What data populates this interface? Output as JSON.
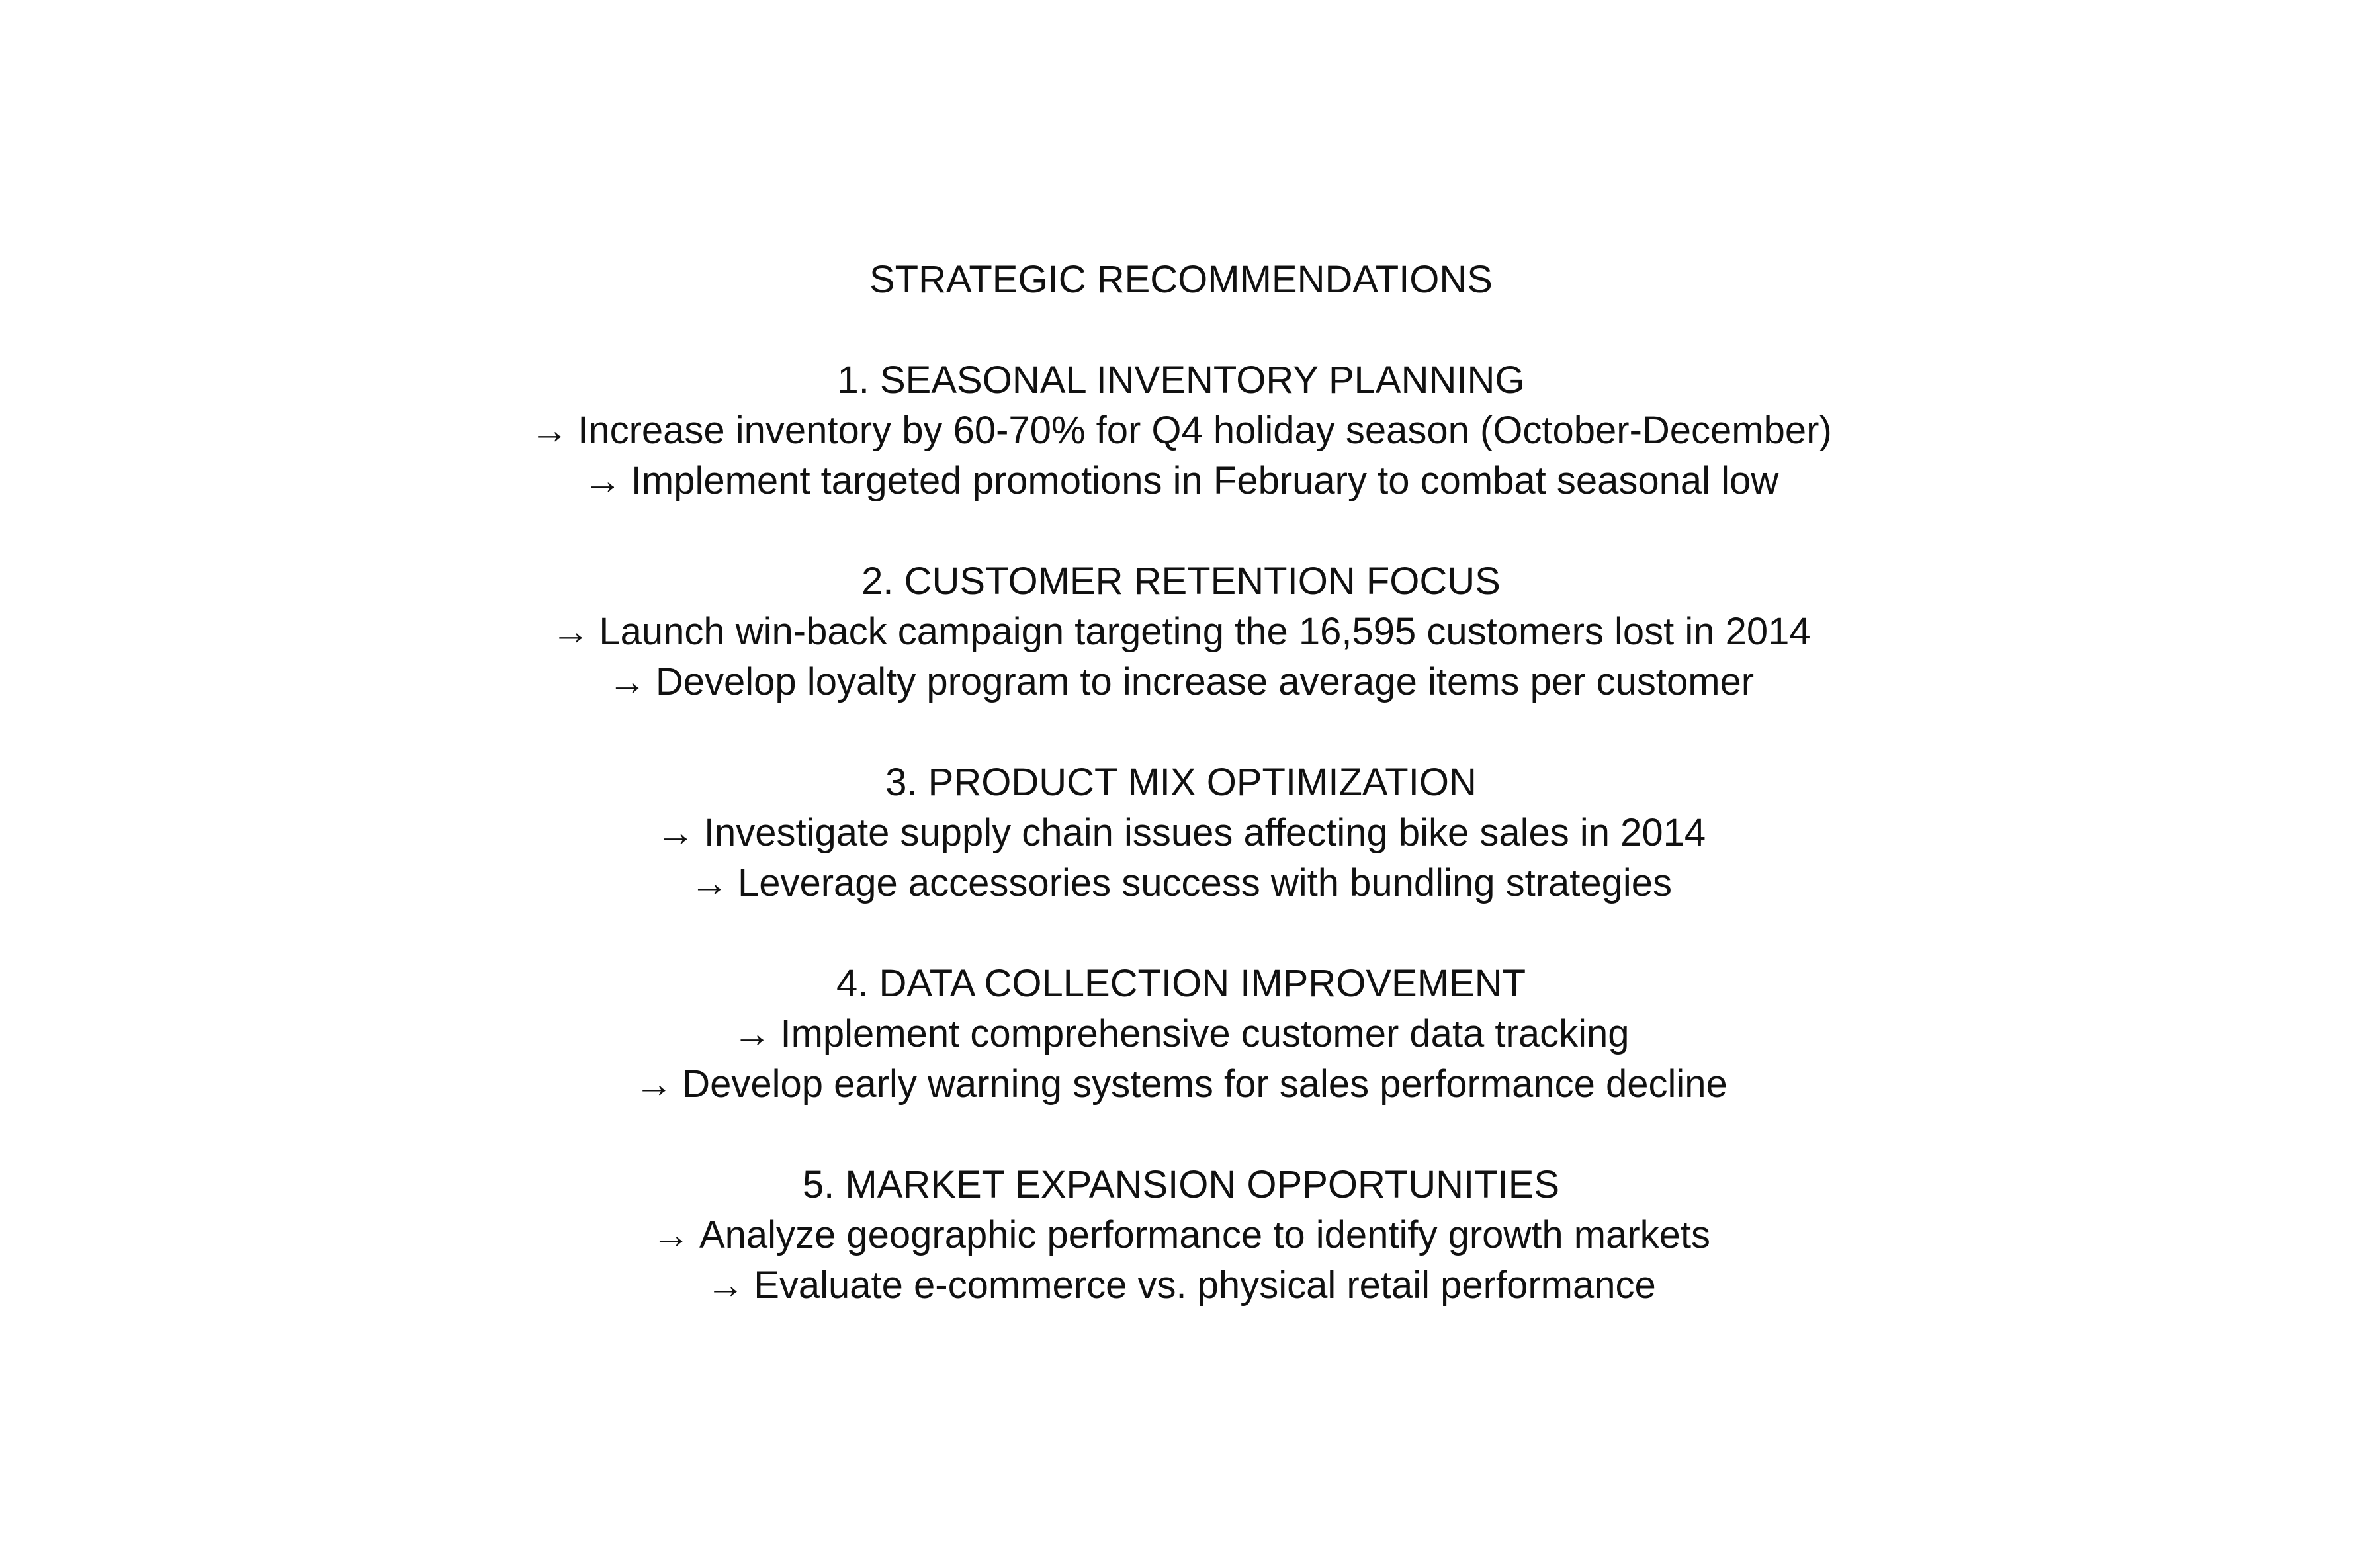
{
  "document": {
    "title": "STRATEGIC RECOMMENDATIONS",
    "arrow_glyph": "→",
    "sections": [
      {
        "heading": "1. SEASONAL INVENTORY PLANNING",
        "bullets": [
          "Increase inventory by 60-70% for Q4 holiday season (October-December)",
          "Implement targeted promotions in February to combat seasonal low"
        ]
      },
      {
        "heading": "2. CUSTOMER RETENTION FOCUS",
        "bullets": [
          "Launch win-back campaign targeting the 16,595 customers lost in 2014",
          "Develop loyalty program to increase average items per customer"
        ]
      },
      {
        "heading": "3. PRODUCT MIX OPTIMIZATION",
        "bullets": [
          "Investigate supply chain issues affecting bike sales in 2014",
          "Leverage accessories success with bundling strategies"
        ]
      },
      {
        "heading": "4. DATA COLLECTION IMPROVEMENT",
        "bullets": [
          "Implement comprehensive customer data tracking",
          "Develop early warning systems for sales performance decline"
        ]
      },
      {
        "heading": "5. MARKET EXPANSION OPPORTUNITIES",
        "bullets": [
          "Analyze geographic performance to identify growth markets",
          "Evaluate e-commerce vs. physical retail performance"
        ]
      }
    ]
  }
}
